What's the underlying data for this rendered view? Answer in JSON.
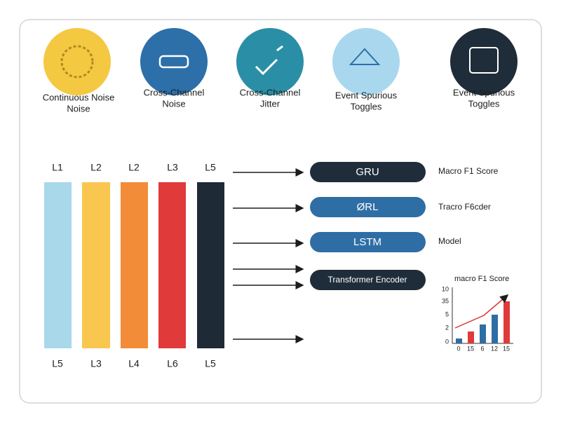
{
  "icons": [
    {
      "lines": [
        "Continuous Noise",
        "Noise"
      ]
    },
    {
      "lines": [
        "Cross-Channel",
        "Noise"
      ]
    },
    {
      "lines": [
        "Cross-Channel",
        "Jitter"
      ]
    },
    {
      "lines": [
        "Event Spurious",
        "Toggles"
      ]
    },
    {
      "lines": [
        "Event Spurious",
        "Toggles"
      ]
    }
  ],
  "columns": {
    "top_labels": [
      "L1",
      "L2",
      "L2",
      "L3",
      "L5"
    ],
    "bottom_labels": [
      "L5",
      "L3",
      "L4",
      "L6",
      "L5"
    ]
  },
  "models": [
    "GRU",
    "ØRL",
    "LSTM",
    "Transformer Encoder"
  ],
  "right_labels": [
    "Macro F1 Score",
    "Tracro F6cder",
    "Model"
  ],
  "mini_chart": {
    "title": "macro F1 Score",
    "y_labels": [
      "10",
      "35",
      "5",
      "2",
      "0"
    ],
    "x_labels": [
      "0",
      "15",
      "6",
      "12",
      "15"
    ]
  }
}
